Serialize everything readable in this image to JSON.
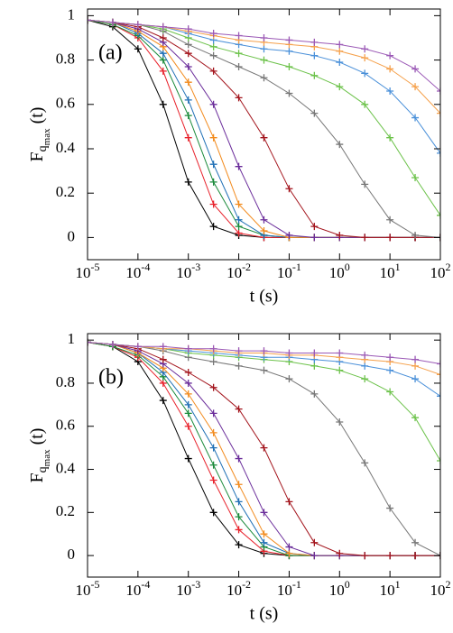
{
  "chart_data": [
    {
      "type": "line",
      "panel_label": "(a)",
      "xlabel": "t (s)",
      "ylabel": {
        "main": "F",
        "sub": "q",
        "subsub": "max",
        "tail": "(t)"
      },
      "xscale": "log",
      "xlim": [
        1e-05,
        100
      ],
      "ylim": [
        -0.1,
        1.03
      ],
      "xticks": [
        {
          "value": 1e-05,
          "label": "10^-5"
        },
        {
          "value": 0.0001,
          "label": "10^-4"
        },
        {
          "value": 0.001,
          "label": "10^-3"
        },
        {
          "value": 0.01,
          "label": "10^-2"
        },
        {
          "value": 0.1,
          "label": "10^-1"
        },
        {
          "value": 1,
          "label": "10^0"
        },
        {
          "value": 10,
          "label": "10^1"
        },
        {
          "value": 100,
          "label": "10^2"
        }
      ],
      "yticks": [
        0,
        0.2,
        0.4,
        0.6,
        0.8,
        1
      ],
      "x": [
        1e-05,
        3.16e-05,
        0.0001,
        0.000316,
        0.001,
        0.00316,
        0.01,
        0.0316,
        0.1,
        0.316,
        1,
        3.16,
        10,
        31.6,
        100
      ],
      "series": [
        {
          "color": "#000000",
          "values": [
            0.98,
            0.95,
            0.85,
            0.6,
            0.25,
            0.05,
            0.01,
            0,
            0,
            0,
            0,
            0,
            0,
            0,
            0
          ]
        },
        {
          "color": "#e8202a",
          "values": [
            0.98,
            0.96,
            0.9,
            0.75,
            0.45,
            0.15,
            0.02,
            0,
            0,
            0,
            0,
            0,
            0,
            0,
            0
          ]
        },
        {
          "color": "#1a8a3a",
          "values": [
            0.98,
            0.96,
            0.91,
            0.8,
            0.55,
            0.25,
            0.05,
            0.01,
            0,
            0,
            0,
            0,
            0,
            0,
            0
          ]
        },
        {
          "color": "#1f6fb5",
          "values": [
            0.98,
            0.97,
            0.92,
            0.83,
            0.62,
            0.33,
            0.08,
            0.01,
            0,
            0,
            0,
            0,
            0,
            0,
            0
          ]
        },
        {
          "color": "#f28a1c",
          "values": [
            0.98,
            0.97,
            0.93,
            0.86,
            0.7,
            0.45,
            0.15,
            0.03,
            0,
            0,
            0,
            0,
            0,
            0,
            0
          ]
        },
        {
          "color": "#6a2c9a",
          "values": [
            0.98,
            0.97,
            0.94,
            0.88,
            0.77,
            0.6,
            0.32,
            0.08,
            0.01,
            0,
            0,
            0,
            0,
            0,
            0
          ]
        },
        {
          "color": "#a3141c",
          "values": [
            0.98,
            0.97,
            0.95,
            0.9,
            0.83,
            0.75,
            0.63,
            0.45,
            0.22,
            0.05,
            0.01,
            0,
            0,
            0,
            0
          ]
        },
        {
          "color": "#777777",
          "values": [
            0.98,
            0.97,
            0.96,
            0.93,
            0.87,
            0.82,
            0.77,
            0.72,
            0.65,
            0.56,
            0.42,
            0.24,
            0.08,
            0.01,
            0
          ]
        },
        {
          "color": "#6cc24a",
          "values": [
            0.98,
            0.97,
            0.96,
            0.94,
            0.9,
            0.86,
            0.83,
            0.8,
            0.77,
            0.73,
            0.68,
            0.6,
            0.45,
            0.27,
            0.1
          ]
        },
        {
          "color": "#4a90d9",
          "values": [
            0.98,
            0.97,
            0.96,
            0.95,
            0.92,
            0.89,
            0.87,
            0.85,
            0.84,
            0.82,
            0.79,
            0.74,
            0.66,
            0.54,
            0.38
          ]
        },
        {
          "color": "#f5a04a",
          "values": [
            0.98,
            0.97,
            0.96,
            0.95,
            0.93,
            0.91,
            0.89,
            0.88,
            0.87,
            0.86,
            0.84,
            0.81,
            0.76,
            0.68,
            0.56
          ]
        },
        {
          "color": "#9b59b6",
          "values": [
            0.98,
            0.97,
            0.96,
            0.95,
            0.94,
            0.92,
            0.91,
            0.9,
            0.89,
            0.88,
            0.87,
            0.85,
            0.82,
            0.76,
            0.66
          ]
        }
      ]
    },
    {
      "type": "line",
      "panel_label": "(b)",
      "xlabel": "t (s)",
      "ylabel": {
        "main": "F",
        "sub": "q",
        "subsub": "max",
        "tail": "(t)"
      },
      "xscale": "log",
      "xlim": [
        1e-05,
        100
      ],
      "ylim": [
        -0.1,
        1.03
      ],
      "xticks": [
        {
          "value": 1e-05,
          "label": "10^-5"
        },
        {
          "value": 0.0001,
          "label": "10^-4"
        },
        {
          "value": 0.001,
          "label": "10^-3"
        },
        {
          "value": 0.01,
          "label": "10^-2"
        },
        {
          "value": 0.1,
          "label": "10^-1"
        },
        {
          "value": 1,
          "label": "10^0"
        },
        {
          "value": 10,
          "label": "10^1"
        },
        {
          "value": 100,
          "label": "10^2"
        }
      ],
      "yticks": [
        0,
        0.2,
        0.4,
        0.6,
        0.8,
        1
      ],
      "x": [
        1e-05,
        3.16e-05,
        0.0001,
        0.000316,
        0.001,
        0.00316,
        0.01,
        0.0316,
        0.1,
        0.316,
        1,
        3.16,
        10,
        31.6,
        100
      ],
      "series": [
        {
          "color": "#000000",
          "values": [
            0.99,
            0.97,
            0.9,
            0.72,
            0.45,
            0.2,
            0.05,
            0.01,
            0,
            0,
            0,
            0,
            0,
            0,
            0
          ]
        },
        {
          "color": "#e8202a",
          "values": [
            0.99,
            0.97,
            0.92,
            0.8,
            0.6,
            0.35,
            0.12,
            0.02,
            0,
            0,
            0,
            0,
            0,
            0,
            0
          ]
        },
        {
          "color": "#1a8a3a",
          "values": [
            0.99,
            0.97,
            0.93,
            0.83,
            0.66,
            0.42,
            0.18,
            0.04,
            0,
            0,
            0,
            0,
            0,
            0,
            0
          ]
        },
        {
          "color": "#1f6fb5",
          "values": [
            0.99,
            0.98,
            0.94,
            0.85,
            0.7,
            0.5,
            0.25,
            0.06,
            0.01,
            0,
            0,
            0,
            0,
            0,
            0
          ]
        },
        {
          "color": "#f28a1c",
          "values": [
            0.99,
            0.98,
            0.94,
            0.87,
            0.75,
            0.57,
            0.33,
            0.1,
            0.01,
            0,
            0,
            0,
            0,
            0,
            0
          ]
        },
        {
          "color": "#6a2c9a",
          "values": [
            0.99,
            0.98,
            0.95,
            0.89,
            0.8,
            0.66,
            0.45,
            0.2,
            0.04,
            0,
            0,
            0,
            0,
            0,
            0
          ]
        },
        {
          "color": "#a3141c",
          "values": [
            0.99,
            0.98,
            0.96,
            0.91,
            0.85,
            0.78,
            0.68,
            0.5,
            0.25,
            0.06,
            0.01,
            0,
            0,
            0,
            0
          ]
        },
        {
          "color": "#777777",
          "values": [
            0.99,
            0.98,
            0.97,
            0.95,
            0.92,
            0.9,
            0.88,
            0.86,
            0.82,
            0.75,
            0.62,
            0.43,
            0.22,
            0.06,
            0
          ]
        },
        {
          "color": "#6cc24a",
          "values": [
            0.99,
            0.98,
            0.97,
            0.96,
            0.94,
            0.93,
            0.92,
            0.91,
            0.9,
            0.88,
            0.86,
            0.82,
            0.76,
            0.64,
            0.44
          ]
        },
        {
          "color": "#4a90d9",
          "values": [
            0.99,
            0.98,
            0.97,
            0.96,
            0.95,
            0.94,
            0.93,
            0.92,
            0.92,
            0.91,
            0.9,
            0.88,
            0.86,
            0.82,
            0.74
          ]
        },
        {
          "color": "#f5a04a",
          "values": [
            0.99,
            0.98,
            0.97,
            0.96,
            0.96,
            0.95,
            0.94,
            0.94,
            0.93,
            0.93,
            0.92,
            0.91,
            0.9,
            0.88,
            0.84
          ]
        },
        {
          "color": "#9b59b6",
          "values": [
            0.99,
            0.98,
            0.97,
            0.97,
            0.96,
            0.96,
            0.95,
            0.95,
            0.94,
            0.94,
            0.94,
            0.93,
            0.92,
            0.91,
            0.89
          ]
        }
      ]
    }
  ]
}
